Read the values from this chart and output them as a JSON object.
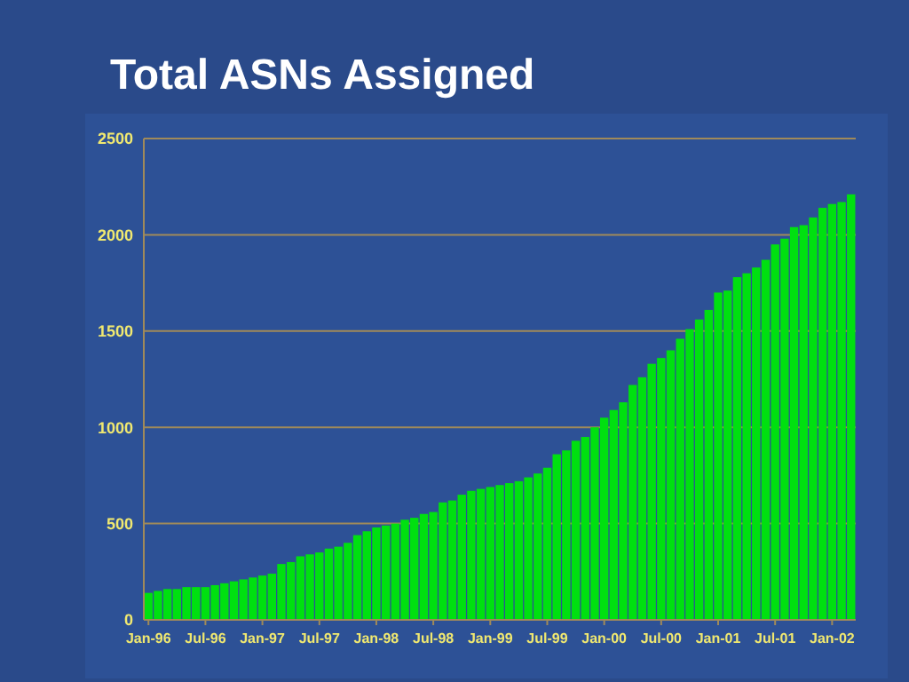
{
  "chart_data": {
    "type": "bar",
    "title": "Total ASNs Assigned",
    "categories": [
      "Jan-96",
      null,
      null,
      null,
      null,
      null,
      "Jul-96",
      null,
      null,
      null,
      null,
      null,
      "Jan-97",
      null,
      null,
      null,
      null,
      null,
      "Jul-97",
      null,
      null,
      null,
      null,
      null,
      "Jan-98",
      null,
      null,
      null,
      null,
      null,
      "Jul-98",
      null,
      null,
      null,
      null,
      null,
      "Jan-99",
      null,
      null,
      null,
      null,
      null,
      "Jul-99",
      null,
      null,
      null,
      null,
      null,
      "Jan-00",
      null,
      null,
      null,
      null,
      null,
      "Jul-00",
      null,
      null,
      null,
      null,
      null,
      "Jan-01",
      null,
      null,
      null,
      null,
      null,
      "Jul-01",
      null,
      null,
      null,
      null,
      null,
      "Jan-02",
      null,
      null
    ],
    "values": [
      140,
      150,
      160,
      160,
      170,
      170,
      170,
      180,
      190,
      200,
      210,
      220,
      230,
      240,
      290,
      300,
      330,
      340,
      350,
      370,
      380,
      400,
      440,
      460,
      480,
      490,
      500,
      520,
      530,
      550,
      560,
      610,
      620,
      650,
      670,
      680,
      690,
      700,
      710,
      720,
      740,
      760,
      790,
      860,
      880,
      930,
      950,
      1000,
      1050,
      1090,
      1130,
      1220,
      1260,
      1330,
      1360,
      1400,
      1460,
      1510,
      1560,
      1610,
      1700,
      1710,
      1780,
      1800,
      1830,
      1870,
      1950,
      1980,
      2040,
      2050,
      2090,
      2140,
      2160,
      2170,
      2210
    ],
    "color": "#00e010",
    "ylim": [
      0,
      2500
    ],
    "yticks": [
      0,
      500,
      1000,
      1500,
      2000,
      2500
    ],
    "grid": "y"
  }
}
